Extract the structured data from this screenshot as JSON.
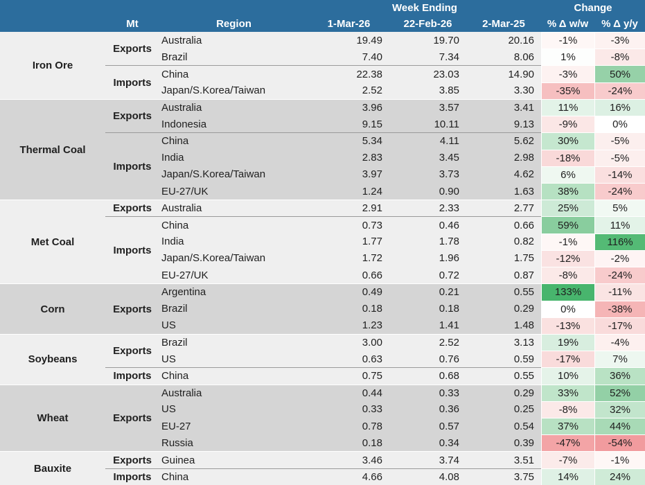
{
  "header": {
    "week_ending_label": "Week Ending",
    "change_label": "Change",
    "mt_label": "Mt",
    "region_label": "Region",
    "date_columns": [
      "1-Mar-26",
      "22-Feb-26",
      "2-Mar-25"
    ],
    "change_columns": [
      "% Δ w/w",
      "% Δ y/y"
    ],
    "header_bg": "#2c6d9d"
  },
  "colors": {
    "section_light": "#efefef",
    "section_dark": "#d5d5d5",
    "group_line": "#9a9a9a",
    "section_line": "#ffffff",
    "positive_max": "#48b56d",
    "negative_max": "#f19b9e",
    "neutral": "#ffffff"
  },
  "table": {
    "sections": [
      {
        "commodity": "Iron Ore",
        "bg": "#efefef",
        "groups": [
          {
            "mt": "Exports",
            "rows": [
              {
                "region": "Australia",
                "values": [
                  "19.49",
                  "19.70",
                  "20.16"
                ],
                "ww": "-1%",
                "yy": "-3%",
                "ww_bg": "#FEF7F6",
                "yy_bg": "#FDF2F1"
              },
              {
                "region": "Brazil",
                "values": [
                  "7.40",
                  "7.34",
                  "8.06"
                ],
                "ww": "1%",
                "yy": "-8%",
                "ww_bg": "#FDFEFD",
                "yy_bg": "#FBE9E8"
              }
            ]
          },
          {
            "mt": "Imports",
            "rows": [
              {
                "region": "China",
                "values": [
                  "22.38",
                  "23.03",
                  "14.90"
                ],
                "ww": "-3%",
                "yy": "50%",
                "ww_bg": "#FDF2F1",
                "yy_bg": "#96D1A8"
              },
              {
                "region": "Japan/S.Korea/Taiwan",
                "values": [
                  "2.52",
                  "3.85",
                  "3.30"
                ],
                "ww": "-35%",
                "yy": "-24%",
                "ww_bg": "#F6BFC0",
                "yy_bg": "#F8CBCC"
              }
            ]
          }
        ]
      },
      {
        "commodity": "Thermal Coal",
        "bg": "#d5d5d5",
        "groups": [
          {
            "mt": "Exports",
            "rows": [
              {
                "region": "Australia",
                "values": [
                  "3.96",
                  "3.57",
                  "3.41"
                ],
                "ww": "11%",
                "yy": "16%",
                "ww_bg": "#E3F3E8",
                "yy_bg": "#DCF0E3"
              },
              {
                "region": "Indonesia",
                "values": [
                  "9.15",
                  "10.11",
                  "9.13"
                ],
                "ww": "-9%",
                "yy": "0%",
                "ww_bg": "#FBE7E6",
                "yy_bg": "#FFFFFF"
              }
            ]
          },
          {
            "mt": "Imports",
            "rows": [
              {
                "region": "China",
                "values": [
                  "5.34",
                  "4.11",
                  "5.62"
                ],
                "ww": "30%",
                "yy": "-5%",
                "ww_bg": "#C5E7CF",
                "yy_bg": "#FCEFEE"
              },
              {
                "region": "India",
                "values": [
                  "2.83",
                  "3.45",
                  "2.98"
                ],
                "ww": "-18%",
                "yy": "-5%",
                "ww_bg": "#F9D9D9",
                "yy_bg": "#FCEFEE"
              },
              {
                "region": "Japan/S.Korea/Taiwan",
                "values": [
                  "3.97",
                  "3.73",
                  "4.62"
                ],
                "ww": "6%",
                "yy": "-14%",
                "ww_bg": "#EFF8F1",
                "yy_bg": "#FADFDF"
              },
              {
                "region": "EU-27/UK",
                "values": [
                  "1.24",
                  "0.90",
                  "1.63"
                ],
                "ww": "38%",
                "yy": "-24%",
                "ww_bg": "#B6E1C2",
                "yy_bg": "#F8CBCC"
              }
            ]
          }
        ]
      },
      {
        "commodity": "Met Coal",
        "bg": "#efefef",
        "groups": [
          {
            "mt": "Exports",
            "rows": [
              {
                "region": "Australia",
                "values": [
                  "2.91",
                  "2.33",
                  "2.77"
                ],
                "ww": "25%",
                "yy": "5%",
                "ww_bg": "#CDEAD6",
                "yy_bg": "#F1F9F3"
              }
            ]
          },
          {
            "mt": "Imports",
            "rows": [
              {
                "region": "China",
                "values": [
                  "0.73",
                  "0.46",
                  "0.66"
                ],
                "ww": "59%",
                "yy": "11%",
                "ww_bg": "#89CD9E",
                "yy_bg": "#E3F3E8"
              },
              {
                "region": "India",
                "values": [
                  "1.77",
                  "1.78",
                  "0.82"
                ],
                "ww": "-1%",
                "yy": "116%",
                "ww_bg": "#FEF7F6",
                "yy_bg": "#54BA75"
              },
              {
                "region": "Japan/S.Korea/Taiwan",
                "values": [
                  "1.72",
                  "1.96",
                  "1.75"
                ],
                "ww": "-12%",
                "yy": "-2%",
                "ww_bg": "#FAE2E2",
                "yy_bg": "#FEF4F4"
              },
              {
                "region": "EU-27/UK",
                "values": [
                  "0.66",
                  "0.72",
                  "0.87"
                ],
                "ww": "-8%",
                "yy": "-24%",
                "ww_bg": "#FBE9E8",
                "yy_bg": "#F8CBCC"
              }
            ]
          }
        ]
      },
      {
        "commodity": "Corn",
        "bg": "#d5d5d5",
        "groups": [
          {
            "mt": "Exports",
            "rows": [
              {
                "region": "Argentina",
                "values": [
                  "0.49",
                  "0.21",
                  "0.55"
                ],
                "ww": "133%",
                "yy": "-11%",
                "ww_bg": "#48B56D",
                "yy_bg": "#FAE4E3"
              },
              {
                "region": "Brazil",
                "values": [
                  "0.18",
                  "0.18",
                  "0.29"
                ],
                "ww": "0%",
                "yy": "-38%",
                "ww_bg": "#FFFFFF",
                "yy_bg": "#F5B5B6"
              },
              {
                "region": "US",
                "values": [
                  "1.23",
                  "1.41",
                  "1.48"
                ],
                "ww": "-13%",
                "yy": "-17%",
                "ww_bg": "#FAE1E0",
                "yy_bg": "#F9DBDB"
              }
            ]
          }
        ]
      },
      {
        "commodity": "Soybeans",
        "bg": "#efefef",
        "groups": [
          {
            "mt": "Exports",
            "rows": [
              {
                "region": "Brazil",
                "values": [
                  "3.00",
                  "2.52",
                  "3.13"
                ],
                "ww": "19%",
                "yy": "-4%",
                "ww_bg": "#D8EEDF",
                "yy_bg": "#FDF0EF"
              },
              {
                "region": "US",
                "values": [
                  "0.63",
                  "0.76",
                  "0.59"
                ],
                "ww": "-17%",
                "yy": "7%",
                "ww_bg": "#F9DBDB",
                "yy_bg": "#EDF7F0"
              }
            ]
          },
          {
            "mt": "Imports",
            "rows": [
              {
                "region": "China",
                "values": [
                  "0.75",
                  "0.68",
                  "0.55"
                ],
                "ww": "10%",
                "yy": "36%",
                "ww_bg": "#E5F3E9",
                "yy_bg": "#B9E2C4"
              }
            ]
          }
        ]
      },
      {
        "commodity": "Wheat",
        "bg": "#d5d5d5",
        "groups": [
          {
            "mt": "Exports",
            "rows": [
              {
                "region": "Australia",
                "values": [
                  "0.44",
                  "0.33",
                  "0.29"
                ],
                "ww": "33%",
                "yy": "52%",
                "ww_bg": "#C0E5CA",
                "yy_bg": "#93D0A6"
              },
              {
                "region": "US",
                "values": [
                  "0.33",
                  "0.36",
                  "0.25"
                ],
                "ww": "-8%",
                "yy": "32%",
                "ww_bg": "#FBE9E8",
                "yy_bg": "#C2E5CC"
              },
              {
                "region": "EU-27",
                "values": [
                  "0.78",
                  "0.57",
                  "0.54"
                ],
                "ww": "37%",
                "yy": "44%",
                "ww_bg": "#B8E1C3",
                "yy_bg": "#A8DAB6"
              },
              {
                "region": "Russia",
                "values": [
                  "0.18",
                  "0.34",
                  "0.39"
                ],
                "ww": "-47%",
                "yy": "-54%",
                "ww_bg": "#F3A4A6",
                "yy_bg": "#F19B9E"
              }
            ]
          }
        ]
      },
      {
        "commodity": "Bauxite",
        "bg": "#efefef",
        "groups": [
          {
            "mt": "Exports",
            "rows": [
              {
                "region": "Guinea",
                "values": [
                  "3.46",
                  "3.74",
                  "3.51"
                ],
                "ww": "-7%",
                "yy": "-1%",
                "ww_bg": "#FBEBEA",
                "yy_bg": "#FEF7F6"
              }
            ]
          },
          {
            "mt": "Imports",
            "rows": [
              {
                "region": "China",
                "values": [
                  "4.66",
                  "4.08",
                  "3.75"
                ],
                "ww": "14%",
                "yy": "24%",
                "ww_bg": "#DFF1E5",
                "yy_bg": "#CFEBD7"
              }
            ]
          }
        ]
      }
    ]
  },
  "chart_data": {
    "type": "table",
    "title": "Weekly commodity trade volumes (Mt) by region with w/w and y/y change",
    "columns": [
      "Commodity",
      "Mt",
      "Region",
      "1-Mar-26",
      "22-Feb-26",
      "2-Mar-25",
      "% Δ w/w",
      "% Δ y/y"
    ],
    "rows": [
      [
        "Iron Ore",
        "Exports",
        "Australia",
        19.49,
        19.7,
        20.16,
        "-1%",
        "-3%"
      ],
      [
        "Iron Ore",
        "Exports",
        "Brazil",
        7.4,
        7.34,
        8.06,
        "1%",
        "-8%"
      ],
      [
        "Iron Ore",
        "Imports",
        "China",
        22.38,
        23.03,
        14.9,
        "-3%",
        "50%"
      ],
      [
        "Iron Ore",
        "Imports",
        "Japan/S.Korea/Taiwan",
        2.52,
        3.85,
        3.3,
        "-35%",
        "-24%"
      ],
      [
        "Thermal Coal",
        "Exports",
        "Australia",
        3.96,
        3.57,
        3.41,
        "11%",
        "16%"
      ],
      [
        "Thermal Coal",
        "Exports",
        "Indonesia",
        9.15,
        10.11,
        9.13,
        "-9%",
        "0%"
      ],
      [
        "Thermal Coal",
        "Imports",
        "China",
        5.34,
        4.11,
        5.62,
        "30%",
        "-5%"
      ],
      [
        "Thermal Coal",
        "Imports",
        "India",
        2.83,
        3.45,
        2.98,
        "-18%",
        "-5%"
      ],
      [
        "Thermal Coal",
        "Imports",
        "Japan/S.Korea/Taiwan",
        3.97,
        3.73,
        4.62,
        "6%",
        "-14%"
      ],
      [
        "Thermal Coal",
        "Imports",
        "EU-27/UK",
        1.24,
        0.9,
        1.63,
        "38%",
        "-24%"
      ],
      [
        "Met Coal",
        "Exports",
        "Australia",
        2.91,
        2.33,
        2.77,
        "25%",
        "5%"
      ],
      [
        "Met Coal",
        "Imports",
        "China",
        0.73,
        0.46,
        0.66,
        "59%",
        "11%"
      ],
      [
        "Met Coal",
        "Imports",
        "India",
        1.77,
        1.78,
        0.82,
        "-1%",
        "116%"
      ],
      [
        "Met Coal",
        "Imports",
        "Japan/S.Korea/Taiwan",
        1.72,
        1.96,
        1.75,
        "-12%",
        "-2%"
      ],
      [
        "Met Coal",
        "Imports",
        "EU-27/UK",
        0.66,
        0.72,
        0.87,
        "-8%",
        "-24%"
      ],
      [
        "Corn",
        "Exports",
        "Argentina",
        0.49,
        0.21,
        0.55,
        "133%",
        "-11%"
      ],
      [
        "Corn",
        "Exports",
        "Brazil",
        0.18,
        0.18,
        0.29,
        "0%",
        "-38%"
      ],
      [
        "Corn",
        "Exports",
        "US",
        1.23,
        1.41,
        1.48,
        "-13%",
        "-17%"
      ],
      [
        "Soybeans",
        "Exports",
        "Brazil",
        3.0,
        2.52,
        3.13,
        "19%",
        "-4%"
      ],
      [
        "Soybeans",
        "Exports",
        "US",
        0.63,
        0.76,
        0.59,
        "-17%",
        "7%"
      ],
      [
        "Soybeans",
        "Imports",
        "China",
        0.75,
        0.68,
        0.55,
        "10%",
        "36%"
      ],
      [
        "Wheat",
        "Exports",
        "Australia",
        0.44,
        0.33,
        0.29,
        "33%",
        "52%"
      ],
      [
        "Wheat",
        "Exports",
        "US",
        0.33,
        0.36,
        0.25,
        "-8%",
        "32%"
      ],
      [
        "Wheat",
        "Exports",
        "EU-27",
        0.78,
        0.57,
        0.54,
        "37%",
        "44%"
      ],
      [
        "Wheat",
        "Exports",
        "Russia",
        0.18,
        0.34,
        0.39,
        "-47%",
        "-54%"
      ],
      [
        "Bauxite",
        "Exports",
        "Guinea",
        3.46,
        3.74,
        3.51,
        "-7%",
        "-1%"
      ],
      [
        "Bauxite",
        "Imports",
        "China",
        4.66,
        4.08,
        3.75,
        "14%",
        "24%"
      ]
    ]
  }
}
